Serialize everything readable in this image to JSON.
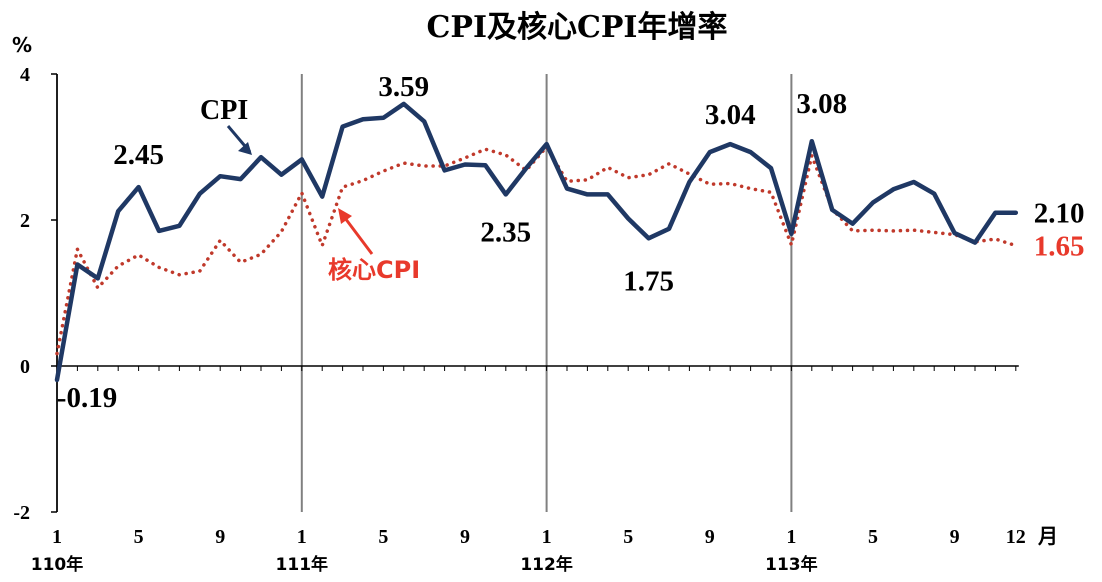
{
  "chart_data": {
    "type": "line",
    "title": "CPI及核心CPI年增率",
    "ylabel": "%",
    "xlabel": "月",
    "ylim": [
      -2,
      4
    ],
    "yticks": [
      "4",
      "2",
      "0",
      "-2"
    ],
    "xtick_labels": [
      {
        "index": 0,
        "label": "1"
      },
      {
        "index": 4,
        "label": "5"
      },
      {
        "index": 8,
        "label": "9"
      },
      {
        "index": 12,
        "label": "1"
      },
      {
        "index": 16,
        "label": "5"
      },
      {
        "index": 20,
        "label": "9"
      },
      {
        "index": 24,
        "label": "1"
      },
      {
        "index": 28,
        "label": "5"
      },
      {
        "index": 32,
        "label": "9"
      },
      {
        "index": 36,
        "label": "1"
      },
      {
        "index": 40,
        "label": "5"
      },
      {
        "index": 44,
        "label": "9"
      },
      {
        "index": 47,
        "label": "12"
      }
    ],
    "year_labels": [
      {
        "index": 0,
        "label": "110年"
      },
      {
        "index": 12,
        "label": "111年"
      },
      {
        "index": 24,
        "label": "112年"
      },
      {
        "index": 36,
        "label": "113年"
      }
    ],
    "year_dividers": [
      0,
      12,
      24,
      36
    ],
    "series": [
      {
        "name": "CPI",
        "color": "#1f3864",
        "style": "solid",
        "values": [
          -0.19,
          1.39,
          1.2,
          2.12,
          2.45,
          1.85,
          1.92,
          2.36,
          2.6,
          2.56,
          2.86,
          2.62,
          2.83,
          2.32,
          3.28,
          3.38,
          3.4,
          3.59,
          3.35,
          2.68,
          2.76,
          2.75,
          2.35,
          2.71,
          3.04,
          2.43,
          2.35,
          2.35,
          2.02,
          1.75,
          1.88,
          2.52,
          2.93,
          3.04,
          2.93,
          2.71,
          1.81,
          3.08,
          2.14,
          1.95,
          2.24,
          2.42,
          2.52,
          2.36,
          1.82,
          1.69,
          2.1,
          2.1
        ]
      },
      {
        "name": "核心CPI",
        "color": "#c0392b",
        "style": "dotted",
        "values": [
          0.17,
          1.6,
          1.07,
          1.37,
          1.52,
          1.35,
          1.25,
          1.3,
          1.72,
          1.42,
          1.53,
          1.84,
          2.37,
          1.65,
          2.45,
          2.54,
          2.67,
          2.78,
          2.74,
          2.74,
          2.85,
          2.97,
          2.89,
          2.68,
          3.0,
          2.53,
          2.55,
          2.72,
          2.58,
          2.62,
          2.77,
          2.63,
          2.49,
          2.5,
          2.43,
          2.38,
          1.66,
          2.88,
          2.15,
          1.85,
          1.86,
          1.85,
          1.86,
          1.83,
          1.8,
          1.7,
          1.74,
          1.65
        ]
      }
    ],
    "annotations": [
      {
        "index": 0,
        "text": "-0.19",
        "color": "black"
      },
      {
        "index": 4,
        "text": "2.45",
        "color": "black"
      },
      {
        "index": 17,
        "text": "3.59",
        "color": "black"
      },
      {
        "index": 22,
        "text": "2.35",
        "color": "black"
      },
      {
        "index": 29,
        "text": "1.75",
        "color": "black"
      },
      {
        "index": 33,
        "text": "3.04",
        "color": "black"
      },
      {
        "index": 37,
        "text": "3.08",
        "color": "black"
      },
      {
        "index": 47,
        "text": "2.10",
        "color": "black"
      },
      {
        "index": 47,
        "text": "1.65",
        "color": "red"
      }
    ]
  }
}
